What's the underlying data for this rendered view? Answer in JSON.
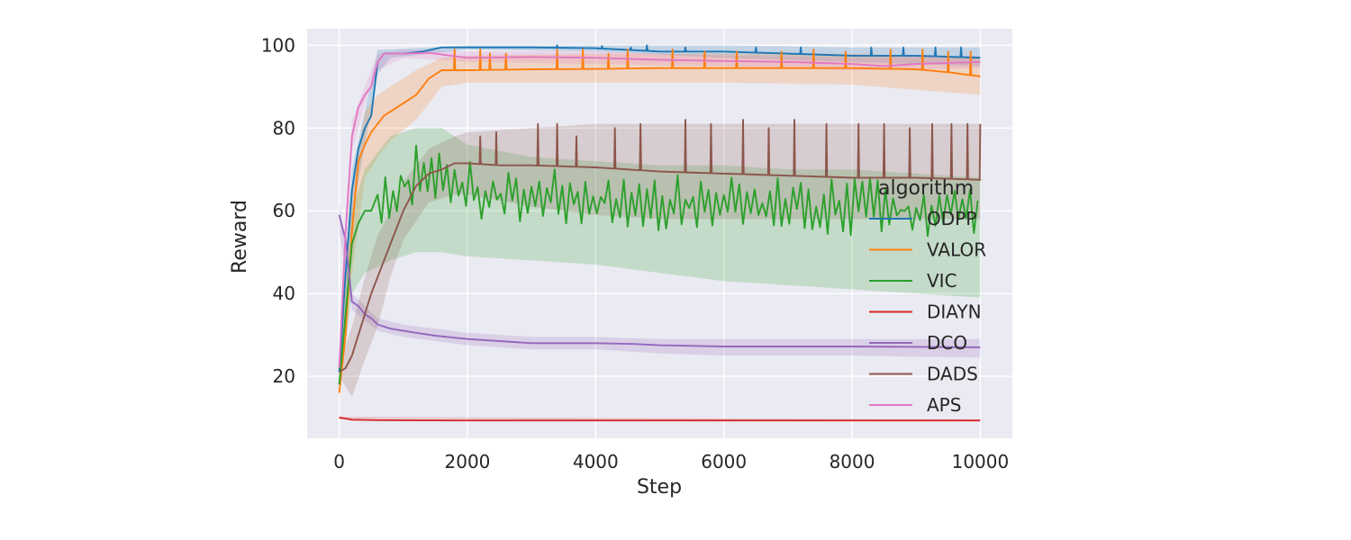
{
  "chart_data": {
    "type": "line",
    "xlabel": "Step",
    "ylabel": "Reward",
    "xlim": [
      -500,
      10500
    ],
    "ylim": [
      5,
      104
    ],
    "xticks": [
      0,
      2000,
      4000,
      6000,
      8000,
      10000
    ],
    "xtick_labels": [
      "0",
      "2000",
      "4000",
      "6000",
      "8000",
      "10000"
    ],
    "yticks": [
      20,
      40,
      60,
      80,
      100
    ],
    "ytick_labels": [
      "20",
      "40",
      "60",
      "80",
      "100"
    ],
    "grid": true,
    "legend": {
      "title": "algorithm",
      "placement": "center-right"
    },
    "series": [
      {
        "name": "ODPP",
        "color": "#1f77b4",
        "points": [
          [
            0,
            21
          ],
          [
            100,
            45
          ],
          [
            200,
            65
          ],
          [
            300,
            75
          ],
          [
            400,
            80
          ],
          [
            500,
            83
          ],
          [
            600,
            96
          ],
          [
            700,
            98
          ],
          [
            800,
            98
          ],
          [
            1000,
            98
          ],
          [
            1300,
            98.5
          ],
          [
            1600,
            99.5
          ],
          [
            2000,
            99.5
          ],
          [
            3000,
            99.5
          ],
          [
            4000,
            99.3
          ],
          [
            5000,
            98.5
          ],
          [
            6000,
            98.5
          ],
          [
            7000,
            98
          ],
          [
            8000,
            97.5
          ],
          [
            9000,
            97.5
          ],
          [
            10000,
            97
          ]
        ],
        "band": [
          [
            0,
            19,
            24
          ],
          [
            200,
            58,
            70
          ],
          [
            400,
            76,
            84
          ],
          [
            600,
            93,
            99
          ],
          [
            800,
            97,
            99
          ],
          [
            2000,
            99,
            100
          ],
          [
            4000,
            98.5,
            100
          ],
          [
            6000,
            97,
            100
          ],
          [
            8000,
            96,
            99.5
          ],
          [
            10000,
            95,
            99.5
          ]
        ],
        "spikes": [
          [
            3400,
            100
          ],
          [
            4100,
            99.8
          ],
          [
            4550,
            99.5
          ],
          [
            4800,
            100
          ],
          [
            5400,
            99.5
          ],
          [
            6500,
            99.5
          ],
          [
            7200,
            99.5
          ],
          [
            8300,
            99.5
          ],
          [
            8800,
            99.5
          ],
          [
            9300,
            99.5
          ],
          [
            9700,
            99.5
          ]
        ]
      },
      {
        "name": "VALOR",
        "color": "#ff7f0e",
        "points": [
          [
            0,
            16
          ],
          [
            100,
            30
          ],
          [
            200,
            55
          ],
          [
            300,
            72
          ],
          [
            400,
            76
          ],
          [
            500,
            79
          ],
          [
            600,
            81
          ],
          [
            700,
            83
          ],
          [
            800,
            84
          ],
          [
            1000,
            86
          ],
          [
            1200,
            88
          ],
          [
            1400,
            92
          ],
          [
            1600,
            94
          ],
          [
            2000,
            94
          ],
          [
            3000,
            94.2
          ],
          [
            4000,
            94.3
          ],
          [
            5000,
            94.5
          ],
          [
            6000,
            94.5
          ],
          [
            7000,
            94.5
          ],
          [
            8000,
            94.5
          ],
          [
            9000,
            94.2
          ],
          [
            9500,
            93.5
          ],
          [
            10000,
            92.5
          ]
        ],
        "band": [
          [
            0,
            14,
            18
          ],
          [
            200,
            45,
            65
          ],
          [
            400,
            68,
            84
          ],
          [
            600,
            73,
            88
          ],
          [
            800,
            77,
            90
          ],
          [
            1200,
            82,
            94
          ],
          [
            1600,
            90,
            97
          ],
          [
            2000,
            91,
            97.5
          ],
          [
            4000,
            91,
            98
          ],
          [
            6000,
            91,
            98
          ],
          [
            8000,
            90.5,
            98
          ],
          [
            10000,
            88,
            97
          ]
        ],
        "spikes": [
          [
            1800,
            99
          ],
          [
            2200,
            99
          ],
          [
            2350,
            98
          ],
          [
            2600,
            98
          ],
          [
            3400,
            99
          ],
          [
            3800,
            99
          ],
          [
            4200,
            98
          ],
          [
            4500,
            99
          ],
          [
            5200,
            99
          ],
          [
            5700,
            98.5
          ],
          [
            6200,
            98.5
          ],
          [
            6900,
            98.5
          ],
          [
            7400,
            99
          ],
          [
            7900,
            98.5
          ],
          [
            8600,
            99
          ],
          [
            9100,
            99
          ],
          [
            9500,
            98.5
          ],
          [
            9850,
            98.5
          ]
        ]
      },
      {
        "name": "VIC",
        "color": "#2ca02c",
        "points": [
          [
            0,
            18
          ],
          [
            100,
            35
          ],
          [
            200,
            52
          ],
          [
            300,
            57
          ],
          [
            400,
            60
          ],
          [
            500,
            60
          ],
          [
            600,
            62
          ],
          [
            800,
            64
          ],
          [
            1000,
            66
          ],
          [
            1200,
            68
          ],
          [
            1400,
            68
          ],
          [
            1800,
            67
          ],
          [
            2200,
            64
          ],
          [
            2600,
            63
          ],
          [
            3000,
            63
          ],
          [
            3500,
            63
          ],
          [
            4000,
            62
          ],
          [
            5000,
            61
          ],
          [
            6000,
            61
          ],
          [
            7000,
            61
          ],
          [
            8000,
            60
          ],
          [
            9000,
            60
          ],
          [
            10000,
            59
          ]
        ],
        "band": [
          [
            0,
            16,
            22
          ],
          [
            200,
            40,
            60
          ],
          [
            400,
            45,
            70
          ],
          [
            800,
            48,
            78
          ],
          [
            1200,
            50,
            80
          ],
          [
            1600,
            50,
            80
          ],
          [
            2000,
            49,
            76
          ],
          [
            3000,
            48,
            73
          ],
          [
            4000,
            47,
            72
          ],
          [
            5000,
            45,
            71
          ],
          [
            6000,
            43,
            71
          ],
          [
            7000,
            42,
            70
          ],
          [
            8000,
            41,
            70
          ],
          [
            9000,
            40,
            69
          ],
          [
            10000,
            39,
            68
          ]
        ],
        "zigzag": {
          "seed": 7,
          "from": 600,
          "to": 10000,
          "step": 60,
          "amplitude_up": 8,
          "amplitude_down": 6
        }
      },
      {
        "name": "DIAYN",
        "color": "#d62728",
        "points": [
          [
            0,
            10
          ],
          [
            200,
            9.5
          ],
          [
            600,
            9.4
          ],
          [
            2000,
            9.3
          ],
          [
            4000,
            9.3
          ],
          [
            6000,
            9.3
          ],
          [
            8000,
            9.3
          ],
          [
            10000,
            9.3
          ]
        ],
        "band": [
          [
            0,
            9.8,
            10.2
          ],
          [
            10000,
            9.1,
            9.5
          ]
        ]
      },
      {
        "name": "DCO",
        "color": "#9467bd",
        "points": [
          [
            0,
            59
          ],
          [
            100,
            53
          ],
          [
            200,
            38
          ],
          [
            300,
            37
          ],
          [
            400,
            35
          ],
          [
            500,
            34
          ],
          [
            600,
            32.5
          ],
          [
            800,
            31.5
          ],
          [
            1000,
            31
          ],
          [
            1200,
            30.5
          ],
          [
            1500,
            29.8
          ],
          [
            2000,
            29
          ],
          [
            2500,
            28.5
          ],
          [
            3000,
            28
          ],
          [
            4000,
            28
          ],
          [
            4600,
            27.8
          ],
          [
            5000,
            27.5
          ],
          [
            6000,
            27.2
          ],
          [
            7000,
            27.2
          ],
          [
            8000,
            27.2
          ],
          [
            9000,
            27.1
          ],
          [
            10000,
            27
          ]
        ],
        "band": [
          [
            0,
            55,
            62
          ],
          [
            200,
            36,
            40
          ],
          [
            600,
            31,
            34
          ],
          [
            1000,
            29.5,
            32.5
          ],
          [
            2000,
            27.5,
            30.5
          ],
          [
            3000,
            26.5,
            29.5
          ],
          [
            4000,
            26.5,
            29.5
          ],
          [
            5000,
            25.5,
            29
          ],
          [
            6000,
            25,
            29
          ],
          [
            8000,
            25,
            29
          ],
          [
            10000,
            24.5,
            29
          ]
        ]
      },
      {
        "name": "DADS",
        "color": "#8c564b",
        "points": [
          [
            0,
            21
          ],
          [
            100,
            22
          ],
          [
            200,
            25
          ],
          [
            300,
            30
          ],
          [
            400,
            35
          ],
          [
            500,
            40
          ],
          [
            600,
            44
          ],
          [
            700,
            48
          ],
          [
            800,
            52
          ],
          [
            900,
            56
          ],
          [
            1000,
            60
          ],
          [
            1200,
            66
          ],
          [
            1400,
            69
          ],
          [
            1600,
            70
          ],
          [
            1800,
            71.5
          ],
          [
            2000,
            71.5
          ],
          [
            2500,
            71
          ],
          [
            3000,
            71
          ],
          [
            4000,
            70.5
          ],
          [
            5000,
            69.5
          ],
          [
            6000,
            69
          ],
          [
            7000,
            68.5
          ],
          [
            8000,
            68
          ],
          [
            9000,
            68
          ],
          [
            10000,
            67.5
          ]
        ],
        "band": [
          [
            0,
            20,
            23
          ],
          [
            200,
            15,
            32
          ],
          [
            400,
            24,
            44
          ],
          [
            600,
            32,
            54
          ],
          [
            800,
            44,
            60
          ],
          [
            1000,
            53,
            67
          ],
          [
            1400,
            62,
            75
          ],
          [
            1800,
            64,
            78
          ],
          [
            2000,
            64,
            79
          ],
          [
            3000,
            61,
            80
          ],
          [
            4000,
            59,
            81
          ],
          [
            5000,
            58,
            81
          ],
          [
            6000,
            58,
            81
          ],
          [
            8000,
            58,
            81
          ],
          [
            10000,
            58,
            81
          ]
        ],
        "spikes": [
          [
            2200,
            78
          ],
          [
            2450,
            79
          ],
          [
            3100,
            81
          ],
          [
            3400,
            81
          ],
          [
            3700,
            78
          ],
          [
            4300,
            80
          ],
          [
            4700,
            81
          ],
          [
            5400,
            82
          ],
          [
            5800,
            81
          ],
          [
            6300,
            82
          ],
          [
            6700,
            80
          ],
          [
            7100,
            82
          ],
          [
            7600,
            81
          ],
          [
            8100,
            81
          ],
          [
            8500,
            81
          ],
          [
            8900,
            80
          ],
          [
            9250,
            81
          ],
          [
            9550,
            81
          ],
          [
            9800,
            81
          ],
          [
            10000,
            81
          ]
        ]
      },
      {
        "name": "APS",
        "color": "#e377c2",
        "points": [
          [
            0,
            22
          ],
          [
            100,
            55
          ],
          [
            200,
            78
          ],
          [
            300,
            85
          ],
          [
            400,
            88
          ],
          [
            500,
            90
          ],
          [
            600,
            96
          ],
          [
            700,
            98
          ],
          [
            1000,
            98
          ],
          [
            1400,
            98.2
          ],
          [
            2000,
            97
          ],
          [
            3000,
            97.2
          ],
          [
            4000,
            97
          ],
          [
            5000,
            96.5
          ],
          [
            6000,
            96.2
          ],
          [
            7000,
            96
          ],
          [
            8000,
            95.5
          ],
          [
            8500,
            95
          ],
          [
            9000,
            95.5
          ],
          [
            10000,
            96
          ]
        ],
        "band": [
          [
            0,
            20,
            25
          ],
          [
            200,
            74,
            82
          ],
          [
            400,
            86,
            90
          ],
          [
            600,
            94,
            98
          ],
          [
            1000,
            97,
            99
          ],
          [
            2000,
            96,
            98.5
          ],
          [
            4000,
            95.5,
            98.5
          ],
          [
            6000,
            95,
            97.5
          ],
          [
            8000,
            94,
            97
          ],
          [
            10000,
            94.5,
            97.5
          ]
        ]
      }
    ]
  }
}
